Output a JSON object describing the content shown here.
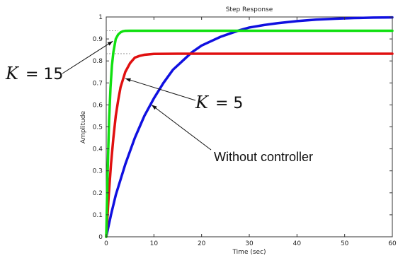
{
  "chart_data": {
    "type": "line",
    "title": "Step Response",
    "xlabel": "Time (sec)",
    "ylabel": "Amplitude",
    "xlim": [
      0,
      60
    ],
    "ylim": [
      0,
      1
    ],
    "xticks": [
      "0",
      "10",
      "20",
      "30",
      "40",
      "50",
      "60"
    ],
    "yticks": [
      "0",
      "0.1",
      "0.2",
      "0.3",
      "0.4",
      "0.5",
      "0.6",
      "0.7",
      "0.8",
      "0.9",
      "1"
    ],
    "grid": false,
    "series": [
      {
        "color": "#1010e0",
        "x": [
          0,
          1,
          2,
          3,
          4,
          5,
          6,
          7,
          8,
          10,
          12,
          14,
          16,
          18,
          20,
          22,
          24,
          26,
          28,
          30,
          33,
          36,
          40,
          44,
          48,
          52,
          56,
          60
        ],
        "y": [
          0,
          0.1,
          0.19,
          0.26,
          0.33,
          0.39,
          0.45,
          0.5,
          0.55,
          0.63,
          0.7,
          0.76,
          0.8,
          0.84,
          0.87,
          0.89,
          0.91,
          0.925,
          0.94,
          0.952,
          0.963,
          0.972,
          0.981,
          0.988,
          0.992,
          0.995,
          0.997,
          0.998
        ]
      },
      {
        "color": "#e01010",
        "x": [
          0,
          0.5,
          1,
          1.5,
          2,
          2.5,
          3,
          4,
          5,
          6,
          7,
          8,
          10,
          15,
          20,
          30,
          40,
          50,
          60
        ],
        "y": [
          0,
          0.18,
          0.33,
          0.45,
          0.55,
          0.62,
          0.68,
          0.75,
          0.79,
          0.815,
          0.823,
          0.828,
          0.832,
          0.833,
          0.833,
          0.833,
          0.833,
          0.833,
          0.833
        ]
      },
      {
        "color": "#10e010",
        "x": [
          0,
          0.3,
          0.6,
          0.9,
          1.2,
          1.5,
          2,
          2.5,
          3,
          3.5,
          4,
          5,
          6,
          8,
          10,
          20,
          30,
          40,
          50,
          60
        ],
        "y": [
          0,
          0.3,
          0.53,
          0.68,
          0.78,
          0.84,
          0.9,
          0.92,
          0.93,
          0.935,
          0.937,
          0.9375,
          0.9375,
          0.9375,
          0.9375,
          0.9375,
          0.9375,
          0.9375,
          0.9375,
          0.9375
        ]
      }
    ],
    "reference_lines": [
      {
        "y": 0.9375,
        "x_end": 2.5
      },
      {
        "y": 0.833,
        "x_end": 5
      }
    ],
    "annotations": [
      {
        "label": "K = 15",
        "lhs": "K",
        "rhs": "= 15",
        "target": [
          1.4,
          0.89
        ]
      },
      {
        "label": "K = 5",
        "lhs": "K",
        "rhs": "= 5",
        "target": [
          4,
          0.72
        ]
      },
      {
        "label": "Without controller",
        "target": [
          9.5,
          0.6
        ]
      }
    ]
  }
}
